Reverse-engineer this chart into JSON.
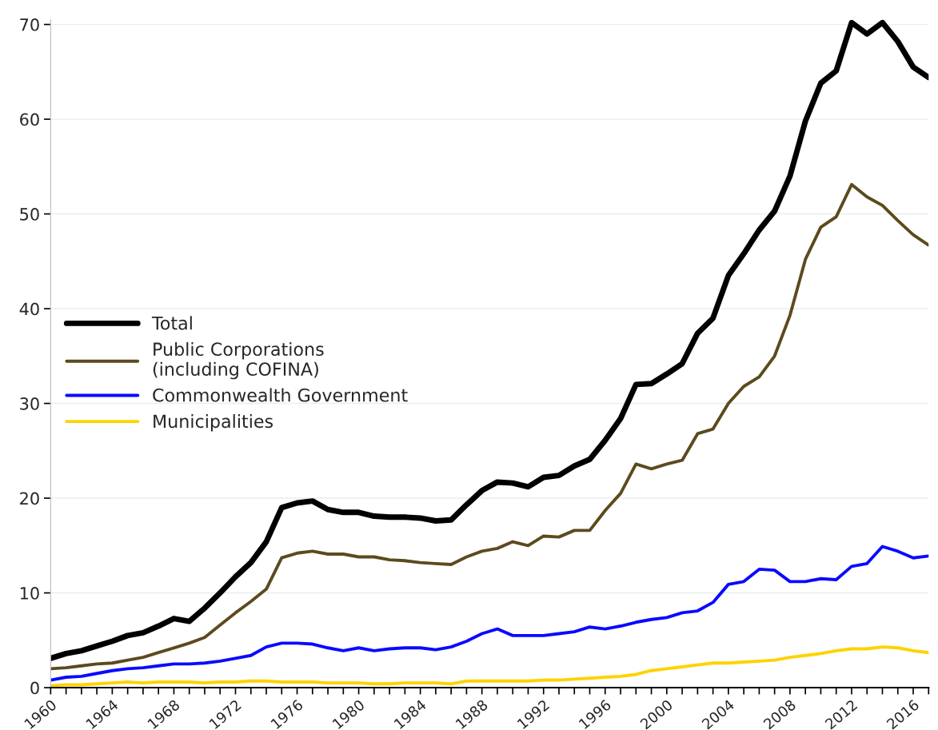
{
  "chart_data": {
    "type": "line",
    "x": [
      1960,
      1961,
      1962,
      1963,
      1964,
      1965,
      1966,
      1967,
      1968,
      1969,
      1970,
      1971,
      1972,
      1973,
      1974,
      1975,
      1976,
      1977,
      1978,
      1979,
      1980,
      1981,
      1982,
      1983,
      1984,
      1985,
      1986,
      1987,
      1988,
      1989,
      1990,
      1991,
      1992,
      1993,
      1994,
      1995,
      1996,
      1997,
      1998,
      1999,
      2000,
      2001,
      2002,
      2003,
      2004,
      2005,
      2006,
      2007,
      2008,
      2009,
      2010,
      2011,
      2012,
      2013,
      2014,
      2015,
      2016,
      2017
    ],
    "series": [
      {
        "name": "Total",
        "color": "#000000",
        "values": [
          3.1,
          3.6,
          3.9,
          4.4,
          4.9,
          5.5,
          5.8,
          6.5,
          7.3,
          7.0,
          8.4,
          10.0,
          11.7,
          13.2,
          15.4,
          19.0,
          19.5,
          19.7,
          18.8,
          18.5,
          18.5,
          18.1,
          18.0,
          18.0,
          17.9,
          17.6,
          17.7,
          19.3,
          20.8,
          21.7,
          21.6,
          21.2,
          22.2,
          22.4,
          23.4,
          24.1,
          26.1,
          28.4,
          32.0,
          32.1,
          33.1,
          34.2,
          37.4,
          39.0,
          43.5,
          45.8,
          48.3,
          50.3,
          54.0,
          59.8,
          63.8,
          65.1,
          70.2,
          69.0,
          70.2,
          68.2,
          65.5,
          64.4
        ]
      },
      {
        "name": "Public Corporations\n(including COFINA)",
        "color": "#5c4a1e",
        "values": [
          2.0,
          2.1,
          2.3,
          2.5,
          2.6,
          2.9,
          3.2,
          3.7,
          4.2,
          4.7,
          5.3,
          6.6,
          7.9,
          9.1,
          10.4,
          13.7,
          14.2,
          14.4,
          14.1,
          14.1,
          13.8,
          13.8,
          13.5,
          13.4,
          13.2,
          13.1,
          13.0,
          13.8,
          14.4,
          14.7,
          15.4,
          15.0,
          16.0,
          15.9,
          16.6,
          16.6,
          18.7,
          20.5,
          23.6,
          23.1,
          23.6,
          24.0,
          26.8,
          27.3,
          30.0,
          31.8,
          32.8,
          35.0,
          39.3,
          45.2,
          48.6,
          49.7,
          53.1,
          51.8,
          50.9,
          49.3,
          47.8,
          46.7
        ]
      },
      {
        "name": "Commonwealth Government",
        "color": "#0a0aff",
        "values": [
          0.8,
          1.1,
          1.2,
          1.5,
          1.8,
          2.0,
          2.1,
          2.3,
          2.5,
          2.5,
          2.6,
          2.8,
          3.1,
          3.4,
          4.3,
          4.7,
          4.7,
          4.6,
          4.2,
          3.9,
          4.2,
          3.9,
          4.1,
          4.2,
          4.2,
          4.0,
          4.3,
          4.9,
          5.7,
          6.2,
          5.5,
          5.5,
          5.5,
          5.7,
          5.9,
          6.4,
          6.2,
          6.5,
          6.9,
          7.2,
          7.4,
          7.9,
          8.1,
          9.0,
          10.9,
          11.2,
          12.5,
          12.4,
          11.2,
          11.2,
          11.5,
          11.4,
          12.8,
          13.1,
          14.9,
          14.4,
          13.7,
          13.9
        ]
      },
      {
        "name": "Municipalities",
        "color": "#ffd200",
        "values": [
          0.2,
          0.3,
          0.3,
          0.4,
          0.5,
          0.6,
          0.5,
          0.6,
          0.6,
          0.6,
          0.5,
          0.6,
          0.6,
          0.7,
          0.7,
          0.6,
          0.6,
          0.6,
          0.5,
          0.5,
          0.5,
          0.4,
          0.4,
          0.5,
          0.5,
          0.5,
          0.4,
          0.7,
          0.7,
          0.7,
          0.7,
          0.7,
          0.8,
          0.8,
          0.9,
          1.0,
          1.1,
          1.2,
          1.4,
          1.8,
          2.0,
          2.2,
          2.4,
          2.6,
          2.6,
          2.7,
          2.8,
          2.9,
          3.2,
          3.4,
          3.6,
          3.9,
          4.1,
          4.1,
          4.3,
          4.2,
          3.9,
          3.7
        ]
      }
    ],
    "xlim": [
      1960,
      2017
    ],
    "xticks": [
      1960,
      {
        "value": 1961,
        "label": null
      },
      {
        "value": 1962,
        "label": null
      },
      {
        "value": 1963,
        "label": null
      },
      1964,
      {
        "value": 1965,
        "label": null
      },
      {
        "value": 1966,
        "label": null
      },
      {
        "value": 1967,
        "label": null
      },
      1968,
      {
        "value": 1969,
        "label": null
      },
      {
        "value": 1970,
        "label": null
      },
      {
        "value": 1971,
        "label": null
      },
      1972,
      {
        "value": 1973,
        "label": null
      },
      {
        "value": 1974,
        "label": null
      },
      {
        "value": 1975,
        "label": null
      },
      1976,
      {
        "value": 1977,
        "label": null
      },
      {
        "value": 1978,
        "label": null
      },
      {
        "value": 1979,
        "label": null
      },
      1980,
      {
        "value": 1981,
        "label": null
      },
      {
        "value": 1982,
        "label": null
      },
      {
        "value": 1983,
        "label": null
      },
      1984,
      {
        "value": 1985,
        "label": null
      },
      {
        "value": 1986,
        "label": null
      },
      {
        "value": 1987,
        "label": null
      },
      1988,
      {
        "value": 1989,
        "label": null
      },
      {
        "value": 1990,
        "label": null
      },
      {
        "value": 1991,
        "label": null
      },
      1992,
      {
        "value": 1993,
        "label": null
      },
      {
        "value": 1994,
        "label": null
      },
      {
        "value": 1995,
        "label": null
      },
      1996,
      {
        "value": 1997,
        "label": null
      },
      {
        "value": 1998,
        "label": null
      },
      {
        "value": 1999,
        "label": null
      },
      2000,
      {
        "value": 2001,
        "label": null
      },
      {
        "value": 2002,
        "label": null
      },
      {
        "value": 2003,
        "label": null
      },
      2004,
      {
        "value": 2005,
        "label": null
      },
      {
        "value": 2006,
        "label": null
      },
      {
        "value": 2007,
        "label": null
      },
      2008,
      {
        "value": 2009,
        "label": null
      },
      {
        "value": 2010,
        "label": null
      },
      {
        "value": 2011,
        "label": null
      },
      2012,
      {
        "value": 2013,
        "label": null
      },
      {
        "value": 2014,
        "label": null
      },
      {
        "value": 2015,
        "label": null
      },
      2016,
      {
        "value": 2017,
        "label": null
      }
    ],
    "ylim": [
      0,
      70.5
    ],
    "yticks": [
      0,
      10,
      20,
      30,
      40,
      50,
      60,
      70
    ],
    "grid": "y",
    "legend": "left",
    "marker": "none",
    "line_style": "solid"
  }
}
